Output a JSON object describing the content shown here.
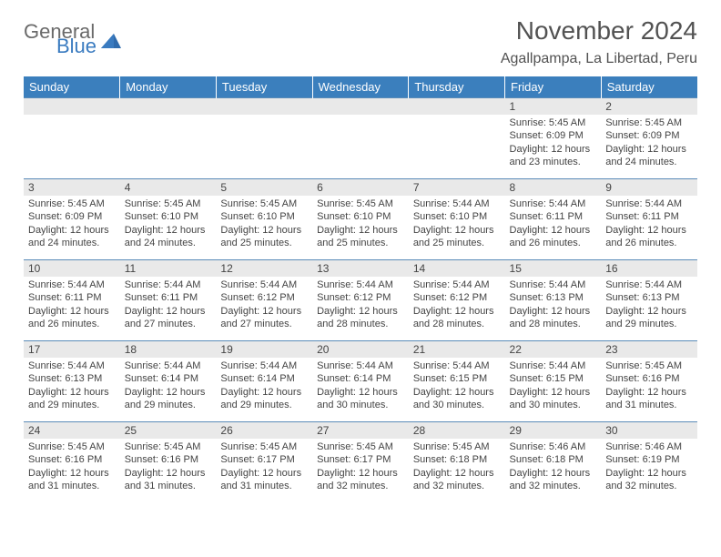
{
  "logo": {
    "text1": "General",
    "text2": "Blue"
  },
  "title": "November 2024",
  "location": "Agallpampa, La Libertad, Peru",
  "colors": {
    "header_bg": "#3b7fbd",
    "header_fg": "#ffffff",
    "daynum_bg": "#e9e9e9",
    "cell_border": "#5a8bb8",
    "text": "#444444",
    "logo_gray": "#6a6a6a",
    "logo_blue": "#3a7bc0"
  },
  "weekdays": [
    "Sunday",
    "Monday",
    "Tuesday",
    "Wednesday",
    "Thursday",
    "Friday",
    "Saturday"
  ],
  "weeks": [
    [
      {
        "day": "",
        "sunrise": "",
        "sunset": "",
        "daylight": ""
      },
      {
        "day": "",
        "sunrise": "",
        "sunset": "",
        "daylight": ""
      },
      {
        "day": "",
        "sunrise": "",
        "sunset": "",
        "daylight": ""
      },
      {
        "day": "",
        "sunrise": "",
        "sunset": "",
        "daylight": ""
      },
      {
        "day": "",
        "sunrise": "",
        "sunset": "",
        "daylight": ""
      },
      {
        "day": "1",
        "sunrise": "Sunrise: 5:45 AM",
        "sunset": "Sunset: 6:09 PM",
        "daylight": "Daylight: 12 hours and 23 minutes."
      },
      {
        "day": "2",
        "sunrise": "Sunrise: 5:45 AM",
        "sunset": "Sunset: 6:09 PM",
        "daylight": "Daylight: 12 hours and 24 minutes."
      }
    ],
    [
      {
        "day": "3",
        "sunrise": "Sunrise: 5:45 AM",
        "sunset": "Sunset: 6:09 PM",
        "daylight": "Daylight: 12 hours and 24 minutes."
      },
      {
        "day": "4",
        "sunrise": "Sunrise: 5:45 AM",
        "sunset": "Sunset: 6:10 PM",
        "daylight": "Daylight: 12 hours and 24 minutes."
      },
      {
        "day": "5",
        "sunrise": "Sunrise: 5:45 AM",
        "sunset": "Sunset: 6:10 PM",
        "daylight": "Daylight: 12 hours and 25 minutes."
      },
      {
        "day": "6",
        "sunrise": "Sunrise: 5:45 AM",
        "sunset": "Sunset: 6:10 PM",
        "daylight": "Daylight: 12 hours and 25 minutes."
      },
      {
        "day": "7",
        "sunrise": "Sunrise: 5:44 AM",
        "sunset": "Sunset: 6:10 PM",
        "daylight": "Daylight: 12 hours and 25 minutes."
      },
      {
        "day": "8",
        "sunrise": "Sunrise: 5:44 AM",
        "sunset": "Sunset: 6:11 PM",
        "daylight": "Daylight: 12 hours and 26 minutes."
      },
      {
        "day": "9",
        "sunrise": "Sunrise: 5:44 AM",
        "sunset": "Sunset: 6:11 PM",
        "daylight": "Daylight: 12 hours and 26 minutes."
      }
    ],
    [
      {
        "day": "10",
        "sunrise": "Sunrise: 5:44 AM",
        "sunset": "Sunset: 6:11 PM",
        "daylight": "Daylight: 12 hours and 26 minutes."
      },
      {
        "day": "11",
        "sunrise": "Sunrise: 5:44 AM",
        "sunset": "Sunset: 6:11 PM",
        "daylight": "Daylight: 12 hours and 27 minutes."
      },
      {
        "day": "12",
        "sunrise": "Sunrise: 5:44 AM",
        "sunset": "Sunset: 6:12 PM",
        "daylight": "Daylight: 12 hours and 27 minutes."
      },
      {
        "day": "13",
        "sunrise": "Sunrise: 5:44 AM",
        "sunset": "Sunset: 6:12 PM",
        "daylight": "Daylight: 12 hours and 28 minutes."
      },
      {
        "day": "14",
        "sunrise": "Sunrise: 5:44 AM",
        "sunset": "Sunset: 6:12 PM",
        "daylight": "Daylight: 12 hours and 28 minutes."
      },
      {
        "day": "15",
        "sunrise": "Sunrise: 5:44 AM",
        "sunset": "Sunset: 6:13 PM",
        "daylight": "Daylight: 12 hours and 28 minutes."
      },
      {
        "day": "16",
        "sunrise": "Sunrise: 5:44 AM",
        "sunset": "Sunset: 6:13 PM",
        "daylight": "Daylight: 12 hours and 29 minutes."
      }
    ],
    [
      {
        "day": "17",
        "sunrise": "Sunrise: 5:44 AM",
        "sunset": "Sunset: 6:13 PM",
        "daylight": "Daylight: 12 hours and 29 minutes."
      },
      {
        "day": "18",
        "sunrise": "Sunrise: 5:44 AM",
        "sunset": "Sunset: 6:14 PM",
        "daylight": "Daylight: 12 hours and 29 minutes."
      },
      {
        "day": "19",
        "sunrise": "Sunrise: 5:44 AM",
        "sunset": "Sunset: 6:14 PM",
        "daylight": "Daylight: 12 hours and 29 minutes."
      },
      {
        "day": "20",
        "sunrise": "Sunrise: 5:44 AM",
        "sunset": "Sunset: 6:14 PM",
        "daylight": "Daylight: 12 hours and 30 minutes."
      },
      {
        "day": "21",
        "sunrise": "Sunrise: 5:44 AM",
        "sunset": "Sunset: 6:15 PM",
        "daylight": "Daylight: 12 hours and 30 minutes."
      },
      {
        "day": "22",
        "sunrise": "Sunrise: 5:44 AM",
        "sunset": "Sunset: 6:15 PM",
        "daylight": "Daylight: 12 hours and 30 minutes."
      },
      {
        "day": "23",
        "sunrise": "Sunrise: 5:45 AM",
        "sunset": "Sunset: 6:16 PM",
        "daylight": "Daylight: 12 hours and 31 minutes."
      }
    ],
    [
      {
        "day": "24",
        "sunrise": "Sunrise: 5:45 AM",
        "sunset": "Sunset: 6:16 PM",
        "daylight": "Daylight: 12 hours and 31 minutes."
      },
      {
        "day": "25",
        "sunrise": "Sunrise: 5:45 AM",
        "sunset": "Sunset: 6:16 PM",
        "daylight": "Daylight: 12 hours and 31 minutes."
      },
      {
        "day": "26",
        "sunrise": "Sunrise: 5:45 AM",
        "sunset": "Sunset: 6:17 PM",
        "daylight": "Daylight: 12 hours and 31 minutes."
      },
      {
        "day": "27",
        "sunrise": "Sunrise: 5:45 AM",
        "sunset": "Sunset: 6:17 PM",
        "daylight": "Daylight: 12 hours and 32 minutes."
      },
      {
        "day": "28",
        "sunrise": "Sunrise: 5:45 AM",
        "sunset": "Sunset: 6:18 PM",
        "daylight": "Daylight: 12 hours and 32 minutes."
      },
      {
        "day": "29",
        "sunrise": "Sunrise: 5:46 AM",
        "sunset": "Sunset: 6:18 PM",
        "daylight": "Daylight: 12 hours and 32 minutes."
      },
      {
        "day": "30",
        "sunrise": "Sunrise: 5:46 AM",
        "sunset": "Sunset: 6:19 PM",
        "daylight": "Daylight: 12 hours and 32 minutes."
      }
    ]
  ]
}
